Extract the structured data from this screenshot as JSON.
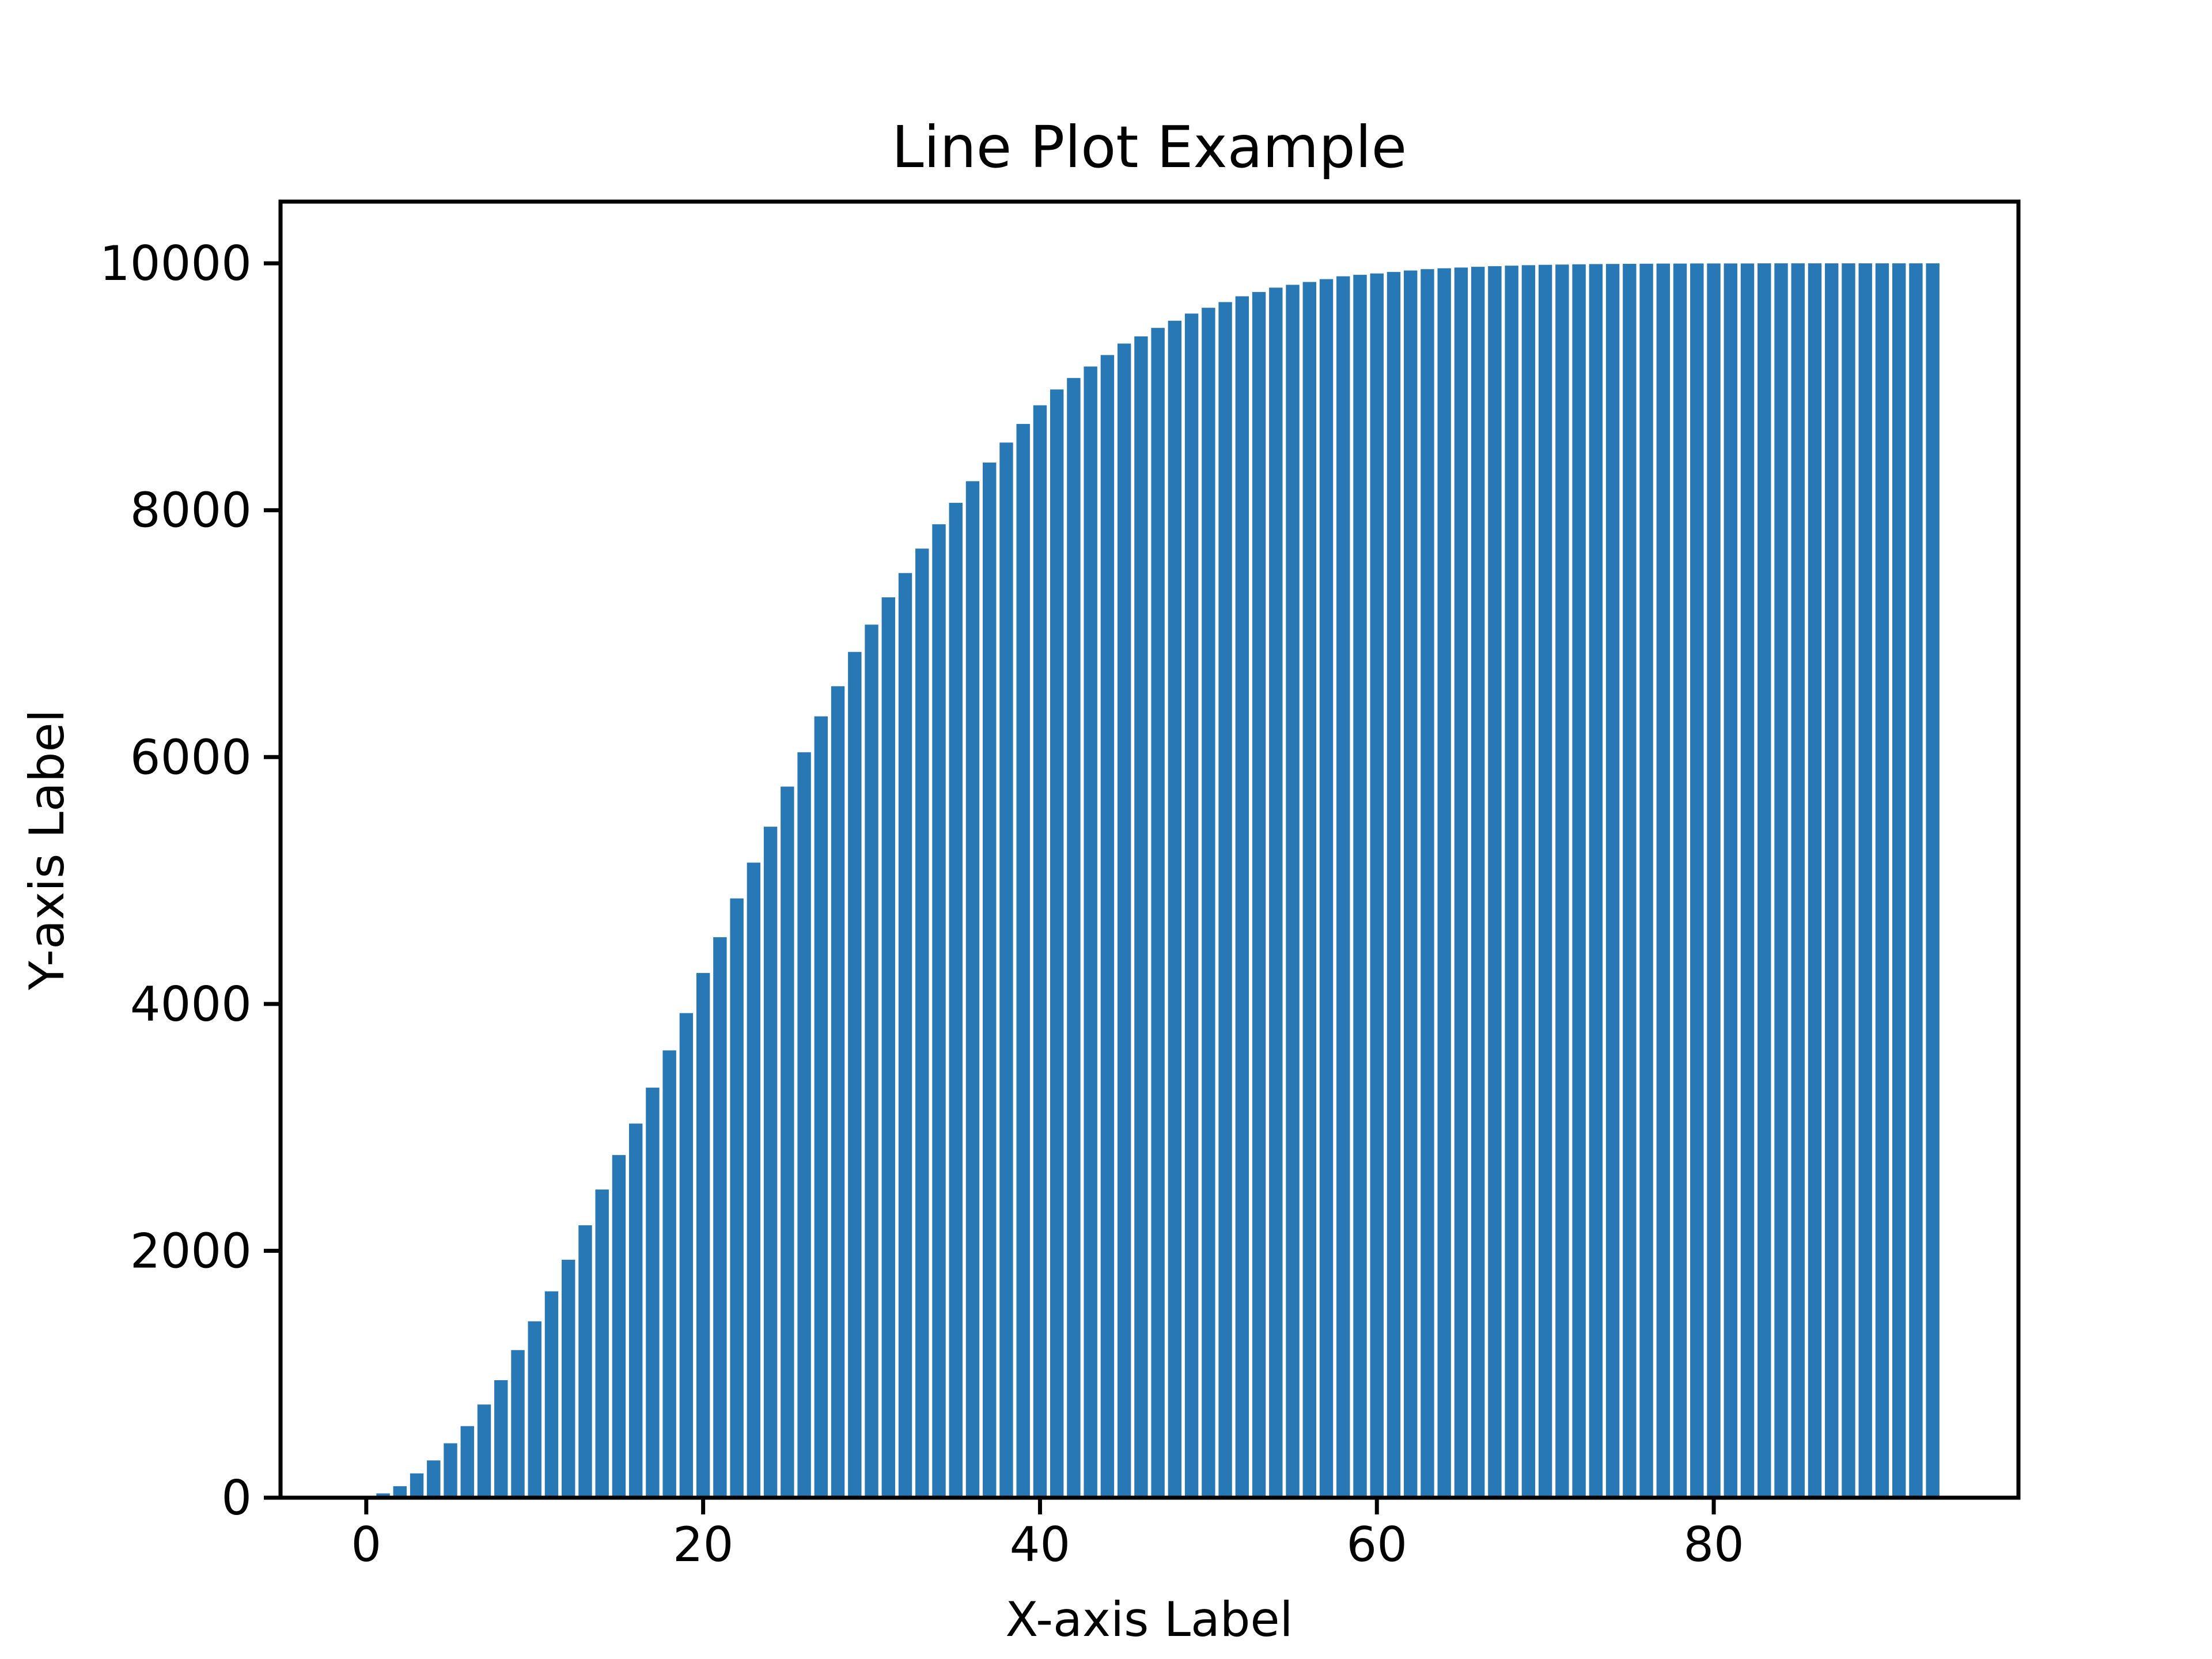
{
  "chart_data": {
    "type": "bar",
    "title": "Line Plot Example",
    "xlabel": "X-axis Label",
    "ylabel": "Y-axis Label",
    "x": [
      0,
      1,
      2,
      3,
      4,
      5,
      6,
      7,
      8,
      9,
      10,
      11,
      12,
      13,
      14,
      15,
      16,
      17,
      18,
      19,
      20,
      21,
      22,
      23,
      24,
      25,
      26,
      27,
      28,
      29,
      30,
      31,
      32,
      33,
      34,
      35,
      36,
      37,
      38,
      39,
      40,
      41,
      42,
      43,
      44,
      45,
      46,
      47,
      48,
      49,
      50,
      51,
      52,
      53,
      54,
      55,
      56,
      57,
      58,
      59,
      60,
      61,
      62,
      63,
      64,
      65,
      66,
      67,
      68,
      69,
      70,
      71,
      72,
      73,
      74,
      75,
      76,
      77,
      78,
      79,
      80,
      81,
      82,
      83,
      84,
      85,
      86,
      87,
      88,
      89,
      90,
      91,
      92,
      93
    ],
    "values": [
      0,
      35,
      93,
      197,
      302,
      441,
      580,
      755,
      952,
      1196,
      1429,
      1672,
      1928,
      2207,
      2497,
      2776,
      3031,
      3322,
      3624,
      3926,
      4251,
      4541,
      4855,
      5145,
      5436,
      5761,
      6039,
      6330,
      6574,
      6852,
      7073,
      7294,
      7491,
      7689,
      7886,
      8060,
      8235,
      8386,
      8548,
      8699,
      8850,
      8978,
      9071,
      9164,
      9257,
      9350,
      9408,
      9477,
      9535,
      9593,
      9640,
      9686,
      9733,
      9768,
      9803,
      9826,
      9849,
      9872,
      9895,
      9907,
      9918,
      9930,
      9942,
      9953,
      9960,
      9966,
      9972,
      9977,
      9981,
      9985,
      9988,
      9990,
      9992,
      9994,
      9995,
      9996,
      9997,
      9998,
      9998,
      9999,
      9999,
      9999,
      9999,
      10000,
      10000,
      10000,
      10000,
      10000,
      10000,
      10000,
      10000,
      10000,
      10000,
      10000
    ],
    "color": "#2878b5",
    "xlim": [
      -5.09,
      98.09
    ],
    "xticks": [
      0,
      20,
      40,
      60,
      80
    ],
    "ylim": [
      0,
      10500
    ],
    "yticks": [
      0,
      2000,
      4000,
      6000,
      8000,
      10000
    ]
  }
}
